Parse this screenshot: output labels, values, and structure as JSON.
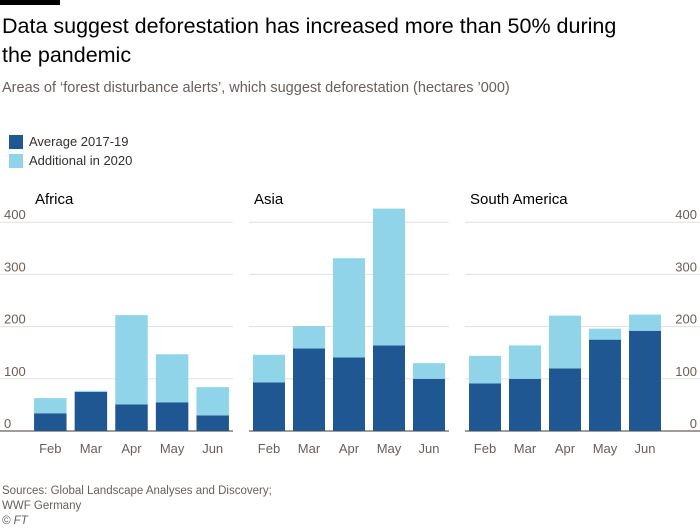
{
  "title": "Data suggest deforestation has increased more than 50% during the pandemic",
  "subtitle": "Areas of ‘forest disturbance alerts’, which suggest deforestation (hectares ’000)",
  "legend": [
    {
      "label": "Average 2017-19",
      "color": "#1f5792"
    },
    {
      "label": "Additional in 2020",
      "color": "#90d4ea"
    }
  ],
  "source_line1": "Sources: Global Landscape Analyses and Discovery;",
  "source_line2": "WWF Germany",
  "copyright": "© FT",
  "chart_data": [
    {
      "type": "bar",
      "stacked": true,
      "title": "Africa",
      "categories": [
        "Feb",
        "Mar",
        "Apr",
        "May",
        "Jun"
      ],
      "series": [
        {
          "name": "Average 2017-19",
          "values": [
            34,
            75,
            51,
            55,
            30
          ]
        },
        {
          "name": "Additional in 2020",
          "values": [
            29,
            2,
            171,
            92,
            54
          ]
        }
      ],
      "ylim": [
        0,
        450
      ],
      "yticks": [
        0,
        100,
        200,
        300,
        400
      ]
    },
    {
      "type": "bar",
      "stacked": true,
      "title": "Asia",
      "categories": [
        "Feb",
        "Mar",
        "Apr",
        "May",
        "Jun"
      ],
      "series": [
        {
          "name": "Average 2017-19",
          "values": [
            93,
            158,
            141,
            164,
            100
          ]
        },
        {
          "name": "Additional in 2020",
          "values": [
            53,
            43,
            190,
            262,
            30
          ]
        }
      ],
      "ylim": [
        0,
        450
      ],
      "yticks": [
        0,
        100,
        200,
        300,
        400
      ]
    },
    {
      "type": "bar",
      "stacked": true,
      "title": "South America",
      "categories": [
        "Feb",
        "Mar",
        "Apr",
        "May",
        "Jun"
      ],
      "series": [
        {
          "name": "Average 2017-19",
          "values": [
            91,
            100,
            120,
            175,
            192
          ]
        },
        {
          "name": "Additional in 2020",
          "values": [
            53,
            64,
            101,
            21,
            31
          ]
        }
      ],
      "ylim": [
        0,
        450
      ],
      "yticks": [
        0,
        100,
        200,
        300,
        400
      ]
    }
  ]
}
